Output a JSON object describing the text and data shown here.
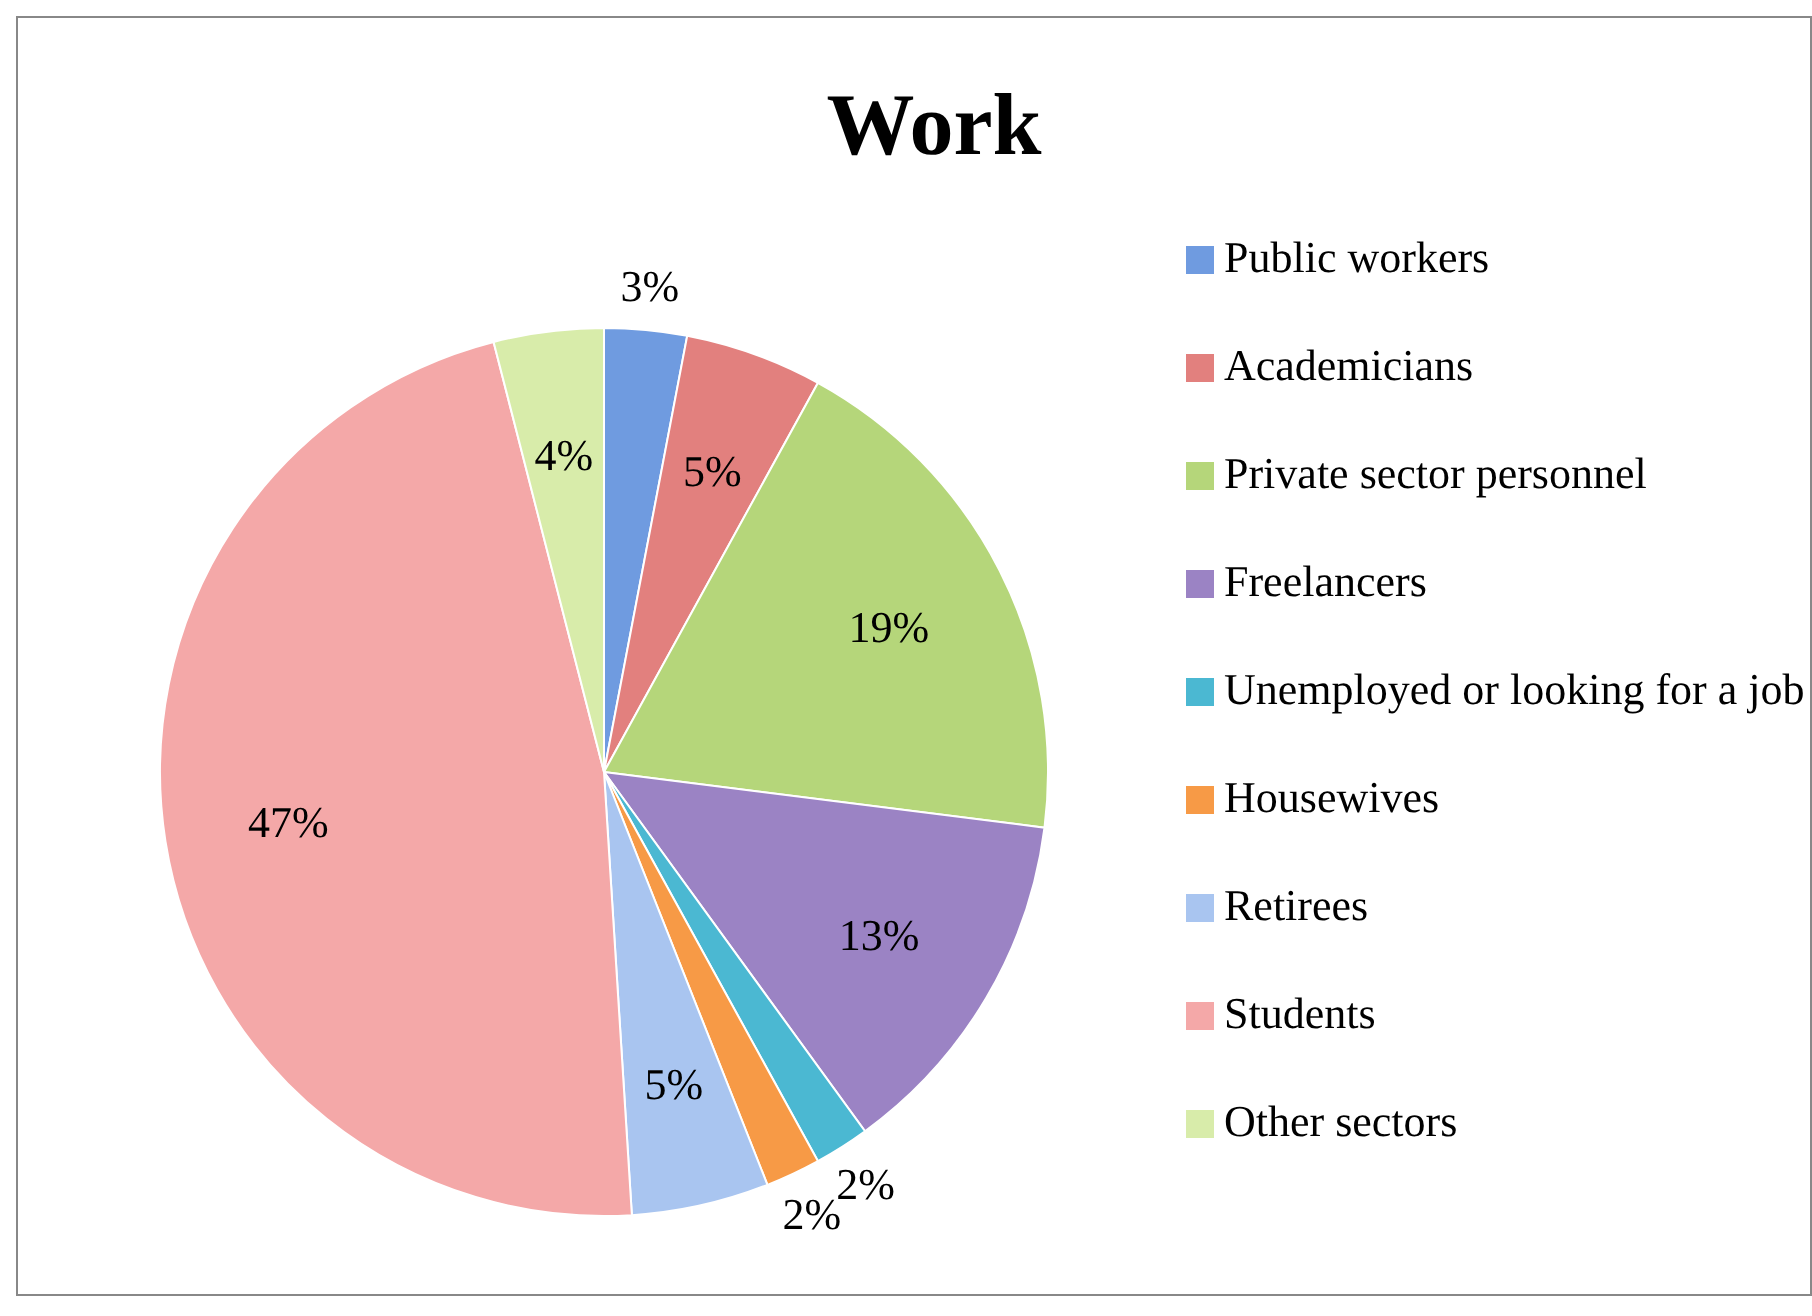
{
  "chart_data": {
    "type": "pie",
    "title": "Work",
    "categories": [
      "Public workers",
      "Academicians",
      "Private sector personnel",
      "Freelancers",
      "Unemployed or looking for a job",
      "Housewives",
      "Retirees",
      "Students",
      "Other sectors"
    ],
    "values": [
      3,
      5,
      19,
      13,
      2,
      2,
      5,
      47,
      4
    ],
    "value_labels": [
      "3%",
      "5%",
      "19%",
      "13%",
      "2%",
      "2%",
      "5%",
      "47%",
      "4%"
    ],
    "colors": [
      "#6f9be0",
      "#e2807e",
      "#b5d67a",
      "#9b83c4",
      "#4bb8d2",
      "#f79a46",
      "#a9c5f0",
      "#f4a8a8",
      "#d8ecaa"
    ],
    "legend": "right"
  }
}
